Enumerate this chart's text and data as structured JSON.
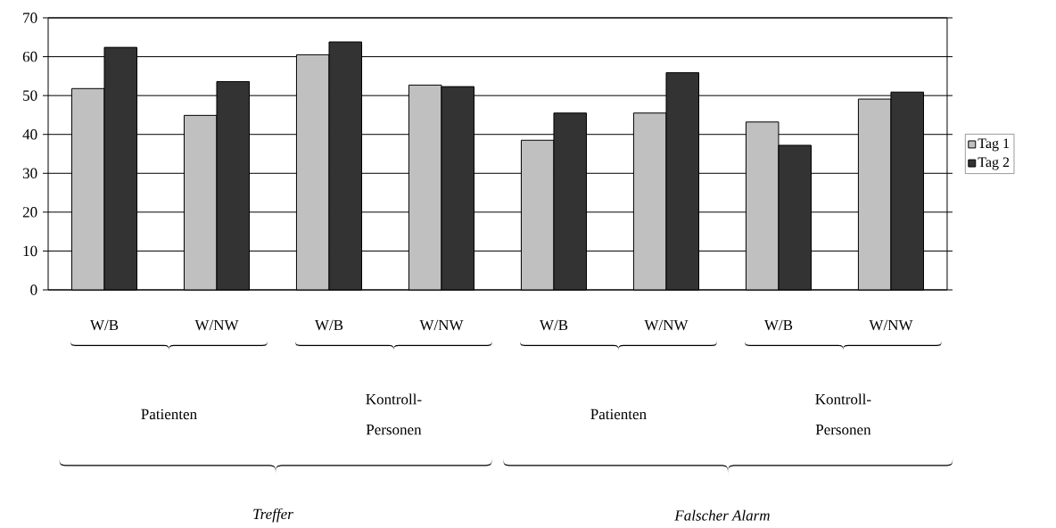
{
  "chart_data": {
    "type": "bar",
    "categories": [
      "W/B",
      "W/NW",
      "W/B",
      "W/NW",
      "W/B",
      "W/NW",
      "W/B",
      "W/NW"
    ],
    "series": [
      {
        "name": "Tag 1",
        "color": "#c0c0c0",
        "values": [
          51.8,
          44.9,
          60.5,
          52.7,
          38.5,
          45.5,
          43.2,
          49.1
        ]
      },
      {
        "name": "Tag 2",
        "color": "#333333",
        "values": [
          62.4,
          53.6,
          63.8,
          52.3,
          45.5,
          55.9,
          37.2,
          50.9
        ]
      }
    ],
    "ylim": [
      0,
      70
    ],
    "yticks": [
      0,
      10,
      20,
      30,
      40,
      50,
      60,
      70
    ],
    "grid": "y",
    "legend": "right",
    "annotations": [
      "Patienten",
      "Kontroll-Personen",
      "Patienten",
      "Kontroll-Personen",
      "Treffer",
      "Falscher Alarm"
    ]
  }
}
